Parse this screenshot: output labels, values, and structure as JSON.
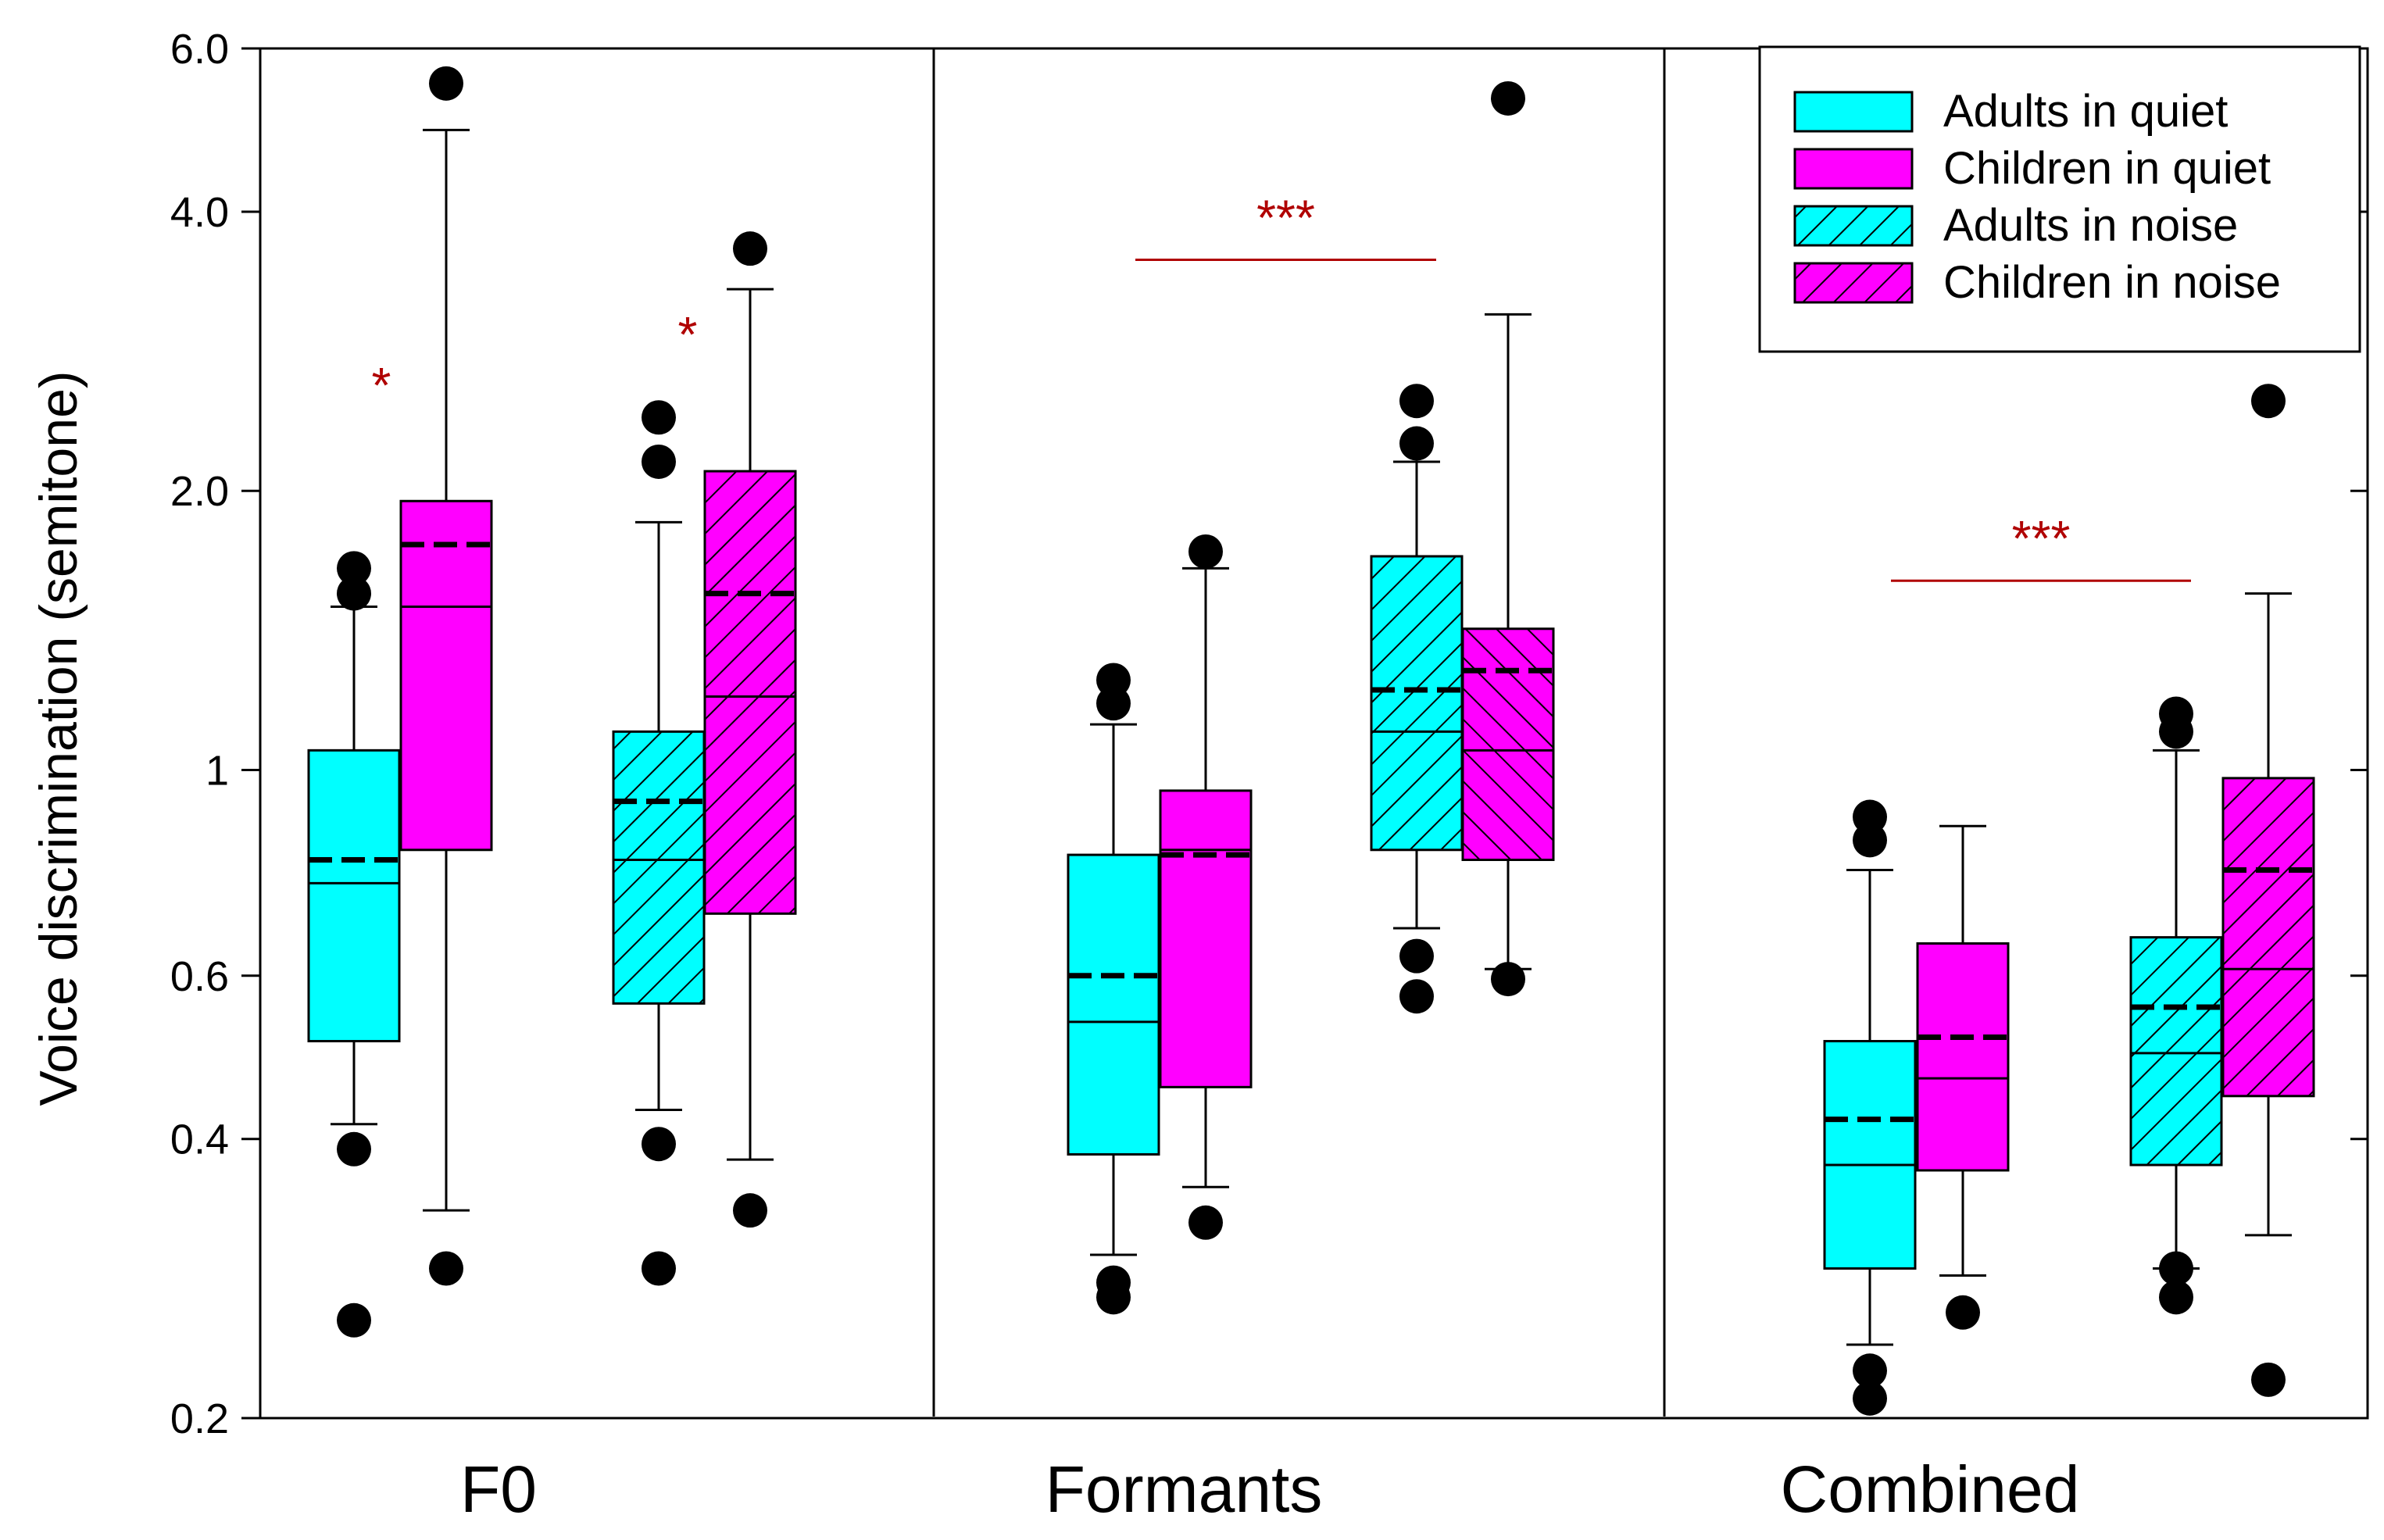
{
  "chart_data": {
    "type": "boxplot",
    "title": "",
    "ylabel": "Voice discrimination (semitone)",
    "xlabel": "",
    "yscale": "log",
    "ylim": [
      0.2,
      6.0
    ],
    "yticks": [
      0.2,
      0.4,
      0.6,
      1,
      2.0,
      4.0,
      6.0
    ],
    "ytick_labels": [
      "0.2",
      "0.4",
      "0.6",
      "1",
      "2.0",
      "4.0",
      "6.0"
    ],
    "categories": [
      "F0",
      "Formants",
      "Combined"
    ],
    "series": [
      {
        "name": "Adults in quiet",
        "color": "#00ffff",
        "hatch": "none"
      },
      {
        "name": "Children in quiet",
        "color": "#ff00ff",
        "hatch": "none"
      },
      {
        "name": "Adults in noise",
        "color": "#00ffff",
        "hatch": "forward"
      },
      {
        "name": "Children in noise",
        "color": "#ff00ff",
        "hatch": "forward"
      }
    ],
    "legend_position": "top-right",
    "boxes": [
      {
        "category": "F0",
        "series": "Adults in quiet",
        "whisker_low": 0.415,
        "q1": 0.51,
        "median": 0.755,
        "mean": 0.8,
        "q3": 1.05,
        "whisker_high": 1.5,
        "outliers": [
          1.65,
          1.55,
          0.39,
          0.255
        ]
      },
      {
        "category": "F0",
        "series": "Children in quiet",
        "whisker_low": 0.335,
        "q1": 0.82,
        "median": 1.5,
        "mean": 1.75,
        "q3": 1.95,
        "whisker_high": 4.9,
        "outliers": [
          5.5,
          0.29
        ]
      },
      {
        "category": "F0",
        "series": "Adults in noise",
        "whisker_low": 0.43,
        "q1": 0.56,
        "median": 0.8,
        "mean": 0.925,
        "q3": 1.1,
        "whisker_high": 1.85,
        "outliers": [
          2.4,
          2.15,
          0.395,
          0.29
        ]
      },
      {
        "category": "F0",
        "series": "Children in noise",
        "whisker_low": 0.38,
        "q1": 0.7,
        "median": 1.2,
        "mean": 1.55,
        "q3": 2.1,
        "whisker_high": 3.3,
        "outliers": [
          3.65,
          0.335
        ]
      },
      {
        "category": "Formants",
        "series": "Adults in quiet",
        "whisker_low": 0.3,
        "q1": 0.385,
        "median": 0.535,
        "mean": 0.6,
        "q3": 0.81,
        "whisker_high": 1.12,
        "outliers": [
          1.25,
          1.18,
          0.28,
          0.27
        ]
      },
      {
        "category": "Formants",
        "series": "Children in quiet",
        "whisker_low": 0.355,
        "q1": 0.455,
        "median": 0.82,
        "mean": 0.81,
        "q3": 0.95,
        "whisker_high": 1.65,
        "outliers": [
          1.72,
          0.325
        ]
      },
      {
        "category": "Formants",
        "series": "Adults in noise",
        "whisker_low": 0.675,
        "q1": 0.82,
        "median": 1.1,
        "mean": 1.22,
        "q3": 1.7,
        "whisker_high": 2.15,
        "outliers": [
          2.5,
          2.25,
          0.63,
          0.57
        ]
      },
      {
        "category": "Formants",
        "series": "Children in noise",
        "whisker_low": 0.61,
        "q1": 0.8,
        "median": 1.05,
        "mean": 1.28,
        "q3": 1.42,
        "whisker_high": 3.1,
        "outliers": [
          5.3,
          0.595
        ]
      },
      {
        "category": "Combined",
        "series": "Adults in quiet",
        "whisker_low": 0.24,
        "q1": 0.29,
        "median": 0.375,
        "mean": 0.42,
        "q3": 0.51,
        "whisker_high": 0.78,
        "outliers": [
          0.89,
          0.84,
          0.225,
          0.21
        ]
      },
      {
        "category": "Combined",
        "series": "Children in quiet",
        "whisker_low": 0.285,
        "q1": 0.37,
        "median": 0.465,
        "mean": 0.515,
        "q3": 0.65,
        "whisker_high": 0.87,
        "outliers": [
          0.26
        ]
      },
      {
        "category": "Combined",
        "series": "Adults in noise",
        "whisker_low": 0.29,
        "q1": 0.375,
        "median": 0.495,
        "mean": 0.555,
        "q3": 0.66,
        "whisker_high": 1.05,
        "outliers": [
          1.15,
          1.1,
          0.29,
          0.27
        ]
      },
      {
        "category": "Combined",
        "series": "Children in noise",
        "whisker_low": 0.315,
        "q1": 0.445,
        "median": 0.61,
        "mean": 0.78,
        "q3": 0.98,
        "whisker_high": 1.55,
        "outliers": [
          2.5,
          0.22
        ]
      }
    ],
    "annotations": [
      {
        "text": "*",
        "category": "F0",
        "condition": "quiet",
        "y": 2.6
      },
      {
        "text": "*",
        "category": "F0",
        "condition": "noise",
        "y": 2.95
      },
      {
        "text": "***",
        "category": "Formants",
        "condition": "quiet vs noise",
        "y": 3.55,
        "bracket": true
      },
      {
        "text": "***",
        "category": "Combined",
        "condition": "quiet vs noise",
        "y": 1.6,
        "bracket": true
      }
    ]
  }
}
